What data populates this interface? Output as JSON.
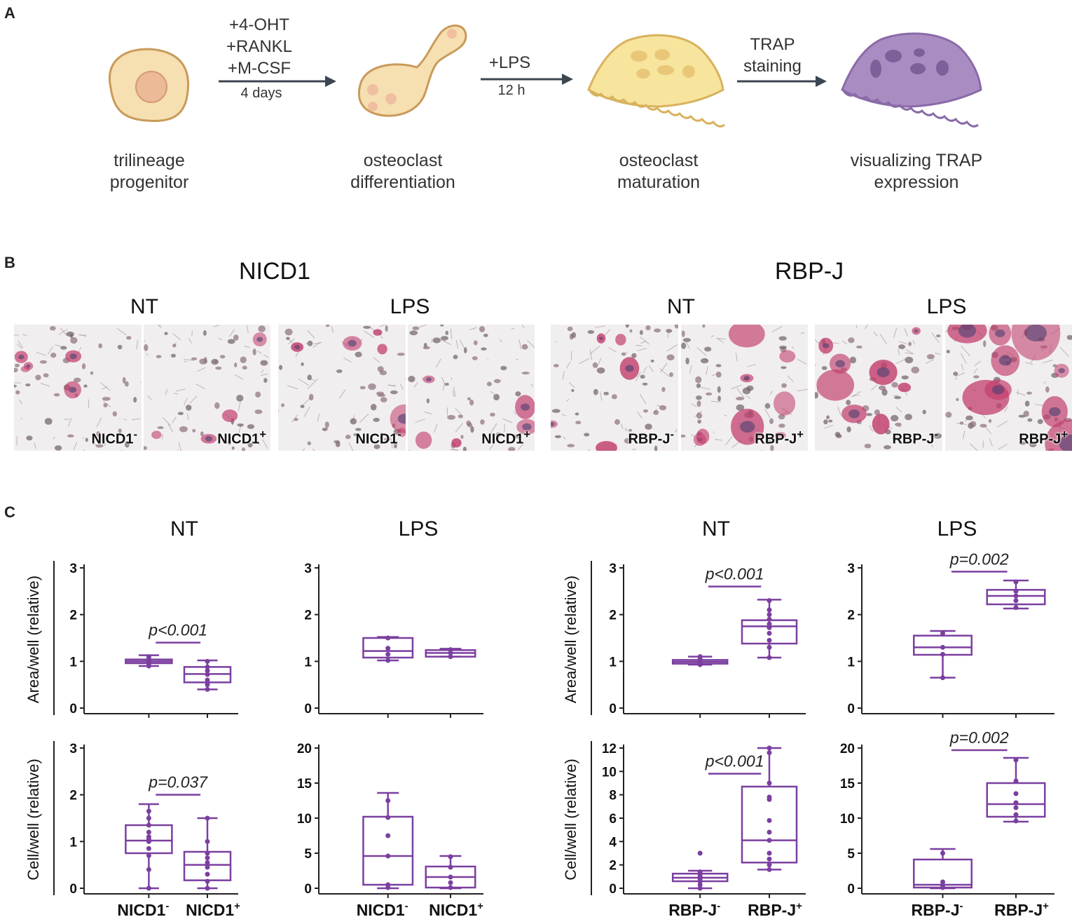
{
  "panels": {
    "a": "A",
    "b": "B",
    "c": "C"
  },
  "panel_a": {
    "stages": [
      {
        "label": "trilineage\nprogenitor"
      },
      {
        "label": "osteoclast\ndifferentiation"
      },
      {
        "label": "osteoclast\nmaturation"
      },
      {
        "label": "visualizing TRAP\nexpression"
      }
    ],
    "arrows": [
      {
        "top": "+4-OHT\n+RANKL\n+M-CSF",
        "bottom": "4 days"
      },
      {
        "top": "+LPS",
        "bottom": "12 h"
      },
      {
        "top": "TRAP\nstaining",
        "bottom": ""
      }
    ],
    "colors": {
      "progenitor": "#f6dfb0",
      "differentiation": "#f6dfb0",
      "maturation": "#f7e49d",
      "trap": "#a98dc2",
      "arrow": "#3b4650"
    }
  },
  "panel_b": {
    "groups": [
      {
        "title": "NICD1",
        "conditions": [
          {
            "title": "NT",
            "images": [
              {
                "label": "NICD1",
                "sup": "-"
              },
              {
                "label": "NICD1",
                "sup": "+"
              }
            ]
          },
          {
            "title": "LPS",
            "images": [
              {
                "label": "NICD1",
                "sup": "-"
              },
              {
                "label": "NICD1",
                "sup": "+"
              }
            ]
          }
        ]
      },
      {
        "title": "RBP-J",
        "conditions": [
          {
            "title": "NT",
            "images": [
              {
                "label": "RBP-J",
                "sup": "-"
              },
              {
                "label": "RBP-J",
                "sup": "+"
              }
            ]
          },
          {
            "title": "LPS",
            "images": [
              {
                "label": "RBP-J",
                "sup": "-"
              },
              {
                "label": "RBP-J",
                "sup": "+"
              }
            ]
          }
        ]
      }
    ]
  },
  "panel_c": {
    "col_titles": [
      "NT",
      "LPS",
      "NT",
      "LPS"
    ],
    "row_ylabels": [
      "Area/well (relative)",
      "Cell/well (relative)"
    ],
    "box_color": "#7b3fa0"
  },
  "chart_data": [
    {
      "type": "box",
      "title": "NT",
      "ylabel": "Area/well (relative)",
      "ylim": [
        0,
        3
      ],
      "yticks": [
        0,
        1,
        2,
        3
      ],
      "categories": [
        {
          "name": "NICD1",
          "sup": "-"
        },
        {
          "name": "NICD1",
          "sup": "+"
        }
      ],
      "boxes": [
        {
          "min": 0.9,
          "q1": 0.96,
          "median": 1.0,
          "q3": 1.04,
          "max": 1.13,
          "points": [
            0.9,
            0.95,
            0.98,
            1.0,
            1.02,
            1.05,
            1.1
          ]
        },
        {
          "min": 0.4,
          "q1": 0.55,
          "median": 0.73,
          "q3": 0.88,
          "max": 1.02,
          "points": [
            0.4,
            0.5,
            0.6,
            0.72,
            0.8,
            0.88,
            1.0
          ]
        }
      ],
      "annotation": {
        "text": "p<0.001",
        "value": 1.4
      }
    },
    {
      "type": "box",
      "title": "LPS",
      "ylabel": "",
      "ylim": [
        0,
        3
      ],
      "yticks": [
        0,
        1,
        2,
        3
      ],
      "categories": [
        {
          "name": "NICD1",
          "sup": "-"
        },
        {
          "name": "NICD1",
          "sup": "+"
        }
      ],
      "boxes": [
        {
          "min": 1.02,
          "q1": 1.08,
          "median": 1.22,
          "q3": 1.5,
          "max": 1.52,
          "points": [
            1.02,
            1.15,
            1.28,
            1.5
          ]
        },
        {
          "min": 1.1,
          "q1": 1.1,
          "median": 1.18,
          "q3": 1.24,
          "max": 1.27,
          "points": [
            1.1,
            1.18,
            1.25
          ]
        }
      ],
      "annotation": null
    },
    {
      "type": "box",
      "title": "NT",
      "ylabel": "Area/well (relative)",
      "ylim": [
        0,
        3
      ],
      "yticks": [
        0,
        1,
        2,
        3
      ],
      "categories": [
        {
          "name": "RBP-J",
          "sup": "-"
        },
        {
          "name": "RBP-J",
          "sup": "+"
        }
      ],
      "boxes": [
        {
          "min": 0.93,
          "q1": 0.95,
          "median": 0.99,
          "q3": 1.03,
          "max": 1.1,
          "points": [
            0.93,
            0.96,
            0.99,
            1.01,
            1.05,
            1.1
          ]
        },
        {
          "min": 1.08,
          "q1": 1.38,
          "median": 1.75,
          "q3": 1.88,
          "max": 2.32,
          "points": [
            1.08,
            1.3,
            1.45,
            1.6,
            1.72,
            1.8,
            1.9,
            2.0,
            2.1,
            2.3
          ]
        }
      ],
      "annotation": {
        "text": "p<0.001",
        "value": 2.6
      }
    },
    {
      "type": "box",
      "title": "LPS",
      "ylabel": "",
      "ylim": [
        0,
        3
      ],
      "yticks": [
        0,
        1,
        2,
        3
      ],
      "categories": [
        {
          "name": "RBP-J",
          "sup": "-"
        },
        {
          "name": "RBP-J",
          "sup": "+"
        }
      ],
      "boxes": [
        {
          "min": 0.65,
          "q1": 1.14,
          "median": 1.3,
          "q3": 1.55,
          "max": 1.65,
          "points": [
            0.65,
            1.15,
            1.3,
            1.6
          ]
        },
        {
          "min": 2.13,
          "q1": 2.22,
          "median": 2.4,
          "q3": 2.53,
          "max": 2.73,
          "points": [
            2.15,
            2.3,
            2.4,
            2.5,
            2.7
          ]
        }
      ],
      "annotation": {
        "text": "p=0.002",
        "value": 2.92
      }
    },
    {
      "type": "box",
      "title": "",
      "ylabel": "Cell/well (relative)",
      "ylim": [
        0,
        3
      ],
      "yticks": [
        0,
        1,
        2,
        3
      ],
      "categories": [
        {
          "name": "NICD1",
          "sup": "-"
        },
        {
          "name": "NICD1",
          "sup": "+"
        }
      ],
      "boxes": [
        {
          "min": 0.0,
          "q1": 0.75,
          "median": 1.02,
          "q3": 1.35,
          "max": 1.8,
          "points": [
            0.0,
            0.4,
            0.7,
            0.85,
            1.0,
            1.05,
            1.1,
            1.2,
            1.35,
            1.5,
            1.65
          ]
        },
        {
          "min": 0.0,
          "q1": 0.17,
          "median": 0.5,
          "q3": 0.78,
          "max": 1.5,
          "points": [
            0.0,
            0.15,
            0.3,
            0.45,
            0.55,
            0.65,
            0.75,
            1.0,
            1.5
          ]
        }
      ],
      "annotation": {
        "text": "p=0.037",
        "value": 2.0
      }
    },
    {
      "type": "box",
      "title": "",
      "ylabel": "",
      "ylim": [
        0,
        20
      ],
      "yticks": [
        0,
        5,
        10,
        15,
        20
      ],
      "categories": [
        {
          "name": "NICD1",
          "sup": "-"
        },
        {
          "name": "NICD1",
          "sup": "+"
        }
      ],
      "boxes": [
        {
          "min": 0.0,
          "q1": 0.5,
          "median": 4.6,
          "q3": 10.2,
          "max": 13.6,
          "points": [
            0.1,
            0.5,
            4.6,
            7.5,
            10.1,
            12.5
          ]
        },
        {
          "min": 0.0,
          "q1": 0.1,
          "median": 1.6,
          "q3": 3.1,
          "max": 4.6,
          "points": [
            0.1,
            0.8,
            1.6,
            3.0,
            4.5
          ]
        }
      ],
      "annotation": null
    },
    {
      "type": "box",
      "title": "",
      "ylabel": "Cell/well (relative)",
      "ylim": [
        0,
        12
      ],
      "yticks": [
        0,
        2,
        4,
        6,
        8,
        10,
        12
      ],
      "categories": [
        {
          "name": "RBP-J",
          "sup": "-"
        },
        {
          "name": "RBP-J",
          "sup": "+"
        }
      ],
      "boxes": [
        {
          "min": 0.0,
          "q1": 0.6,
          "median": 0.9,
          "q3": 1.25,
          "max": 1.5,
          "points": [
            0.0,
            0.3,
            0.6,
            0.8,
            0.9,
            1.0,
            1.2,
            1.4,
            3.0
          ]
        },
        {
          "min": 1.6,
          "q1": 2.2,
          "median": 4.1,
          "q3": 8.7,
          "max": 12.0,
          "points": [
            1.6,
            2.0,
            2.5,
            3.0,
            4.1,
            4.8,
            5.8,
            7.6,
            7.8,
            9.0,
            11.6,
            12.0
          ]
        }
      ],
      "annotation": {
        "text": "p<0.001",
        "value": 9.8
      }
    },
    {
      "type": "box",
      "title": "",
      "ylabel": "",
      "ylim": [
        0,
        20
      ],
      "yticks": [
        0,
        5,
        10,
        15,
        20
      ],
      "categories": [
        {
          "name": "RBP-J",
          "sup": "-"
        },
        {
          "name": "RBP-J",
          "sup": "+"
        }
      ],
      "boxes": [
        {
          "min": 0.0,
          "q1": 0.1,
          "median": 0.5,
          "q3": 4.1,
          "max": 5.6,
          "points": [
            0.1,
            0.4,
            0.9,
            5.0
          ]
        },
        {
          "min": 9.5,
          "q1": 10.2,
          "median": 12.0,
          "q3": 15.0,
          "max": 18.6,
          "points": [
            9.6,
            10.5,
            11.5,
            12.2,
            13.5,
            15.3,
            18.3
          ]
        }
      ],
      "annotation": {
        "text": "p=0.002",
        "value": 19.7
      }
    }
  ]
}
